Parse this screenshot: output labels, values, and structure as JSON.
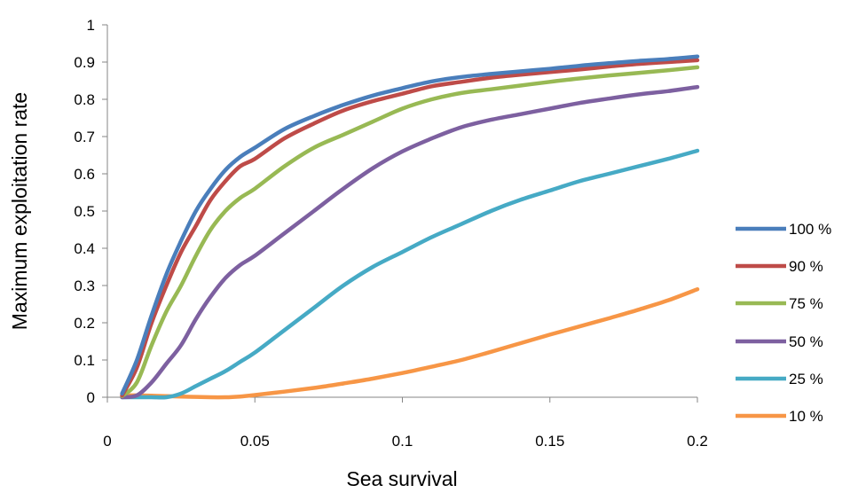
{
  "chart_data": {
    "type": "line",
    "title": "",
    "xlabel": "Sea survival",
    "ylabel": "Maximum exploitation rate",
    "xlim": [
      0,
      0.2
    ],
    "ylim": [
      0,
      1
    ],
    "xticks": [
      "0",
      "0.05",
      "0.1",
      "0.15",
      "0.2"
    ],
    "yticks": [
      "0",
      "0.1",
      "0.2",
      "0.3",
      "0.4",
      "0.5",
      "0.6",
      "0.7",
      "0.8",
      "0.9",
      "1"
    ],
    "grid": false,
    "legend_position": "right",
    "x": [
      0.005,
      0.01,
      0.015,
      0.02,
      0.025,
      0.03,
      0.035,
      0.04,
      0.045,
      0.05,
      0.06,
      0.07,
      0.08,
      0.09,
      0.1,
      0.11,
      0.12,
      0.13,
      0.14,
      0.15,
      0.16,
      0.17,
      0.18,
      0.19,
      0.2
    ],
    "series": [
      {
        "name": "100 %",
        "color": "#4a7ebb",
        "values": [
          0.01,
          0.1,
          0.22,
          0.33,
          0.42,
          0.5,
          0.56,
          0.61,
          0.645,
          0.67,
          0.72,
          0.755,
          0.785,
          0.81,
          0.83,
          0.848,
          0.86,
          0.868,
          0.875,
          0.882,
          0.89,
          0.897,
          0.903,
          0.908,
          0.915
        ]
      },
      {
        "name": "90 %",
        "color": "#be4b48",
        "values": [
          0.005,
          0.08,
          0.2,
          0.3,
          0.39,
          0.46,
          0.53,
          0.58,
          0.62,
          0.64,
          0.695,
          0.735,
          0.77,
          0.795,
          0.815,
          0.835,
          0.847,
          0.858,
          0.866,
          0.873,
          0.88,
          0.888,
          0.895,
          0.9,
          0.905
        ]
      },
      {
        "name": "75 %",
        "color": "#98b954",
        "values": [
          0.003,
          0.04,
          0.14,
          0.23,
          0.3,
          0.38,
          0.45,
          0.5,
          0.535,
          0.56,
          0.62,
          0.67,
          0.705,
          0.74,
          0.775,
          0.8,
          0.817,
          0.827,
          0.837,
          0.847,
          0.856,
          0.864,
          0.871,
          0.878,
          0.886
        ]
      },
      {
        "name": "50 %",
        "color": "#7d60a0",
        "values": [
          0.0,
          0.005,
          0.04,
          0.09,
          0.14,
          0.21,
          0.27,
          0.32,
          0.355,
          0.38,
          0.44,
          0.5,
          0.56,
          0.615,
          0.66,
          0.695,
          0.725,
          0.745,
          0.76,
          0.775,
          0.79,
          0.802,
          0.813,
          0.822,
          0.833
        ]
      },
      {
        "name": "25 %",
        "color": "#46aac5",
        "values": [
          0.0,
          0.0,
          0.0,
          0.0,
          0.01,
          0.03,
          0.05,
          0.07,
          0.095,
          0.12,
          0.18,
          0.24,
          0.3,
          0.35,
          0.39,
          0.43,
          0.465,
          0.5,
          0.53,
          0.555,
          0.58,
          0.6,
          0.62,
          0.64,
          0.662
        ]
      },
      {
        "name": "10 %",
        "color": "#f79646",
        "values": [
          0.005,
          0.005,
          0.004,
          0.003,
          0.002,
          0.001,
          0.0,
          0.0,
          0.002,
          0.006,
          0.015,
          0.025,
          0.037,
          0.05,
          0.065,
          0.082,
          0.1,
          0.122,
          0.145,
          0.168,
          0.19,
          0.212,
          0.235,
          0.26,
          0.29
        ]
      }
    ]
  }
}
